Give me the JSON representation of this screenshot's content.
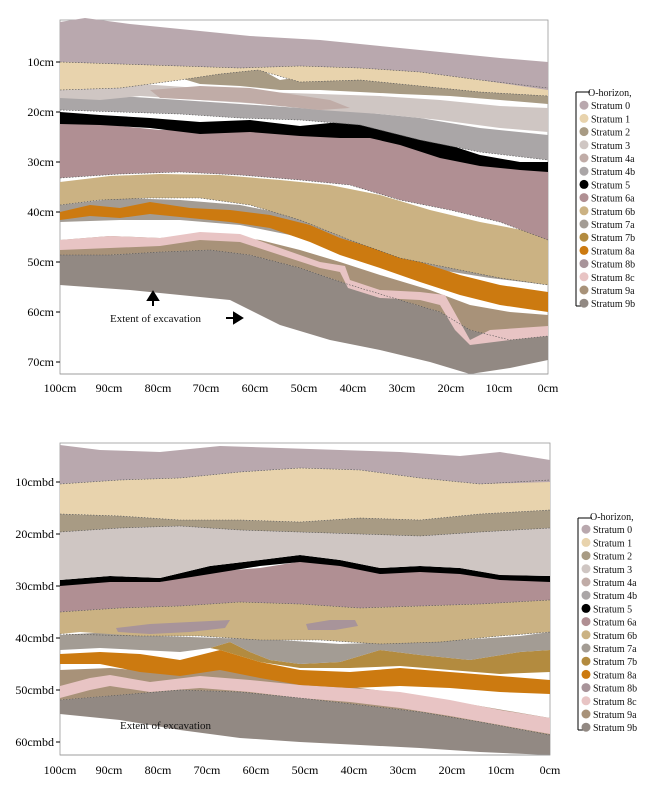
{
  "panels": [
    {
      "id": "top",
      "x_labels": [
        "100cm",
        "90cm",
        "80cm",
        "70cm",
        "60cm",
        "50cm",
        "40cm",
        "30cm",
        "20cm",
        "10cm",
        "0cm"
      ],
      "y_labels": [
        "10cm",
        "20cm",
        "30cm",
        "40cm",
        "50cm",
        "60cm",
        "70cm"
      ],
      "annotation": "Extent of excavation"
    },
    {
      "id": "bottom",
      "x_labels": [
        "100cm",
        "90cm",
        "80cm",
        "70cm",
        "60cm",
        "50cm",
        "40cm",
        "30cm",
        "20cm",
        "10cm",
        "0cm"
      ],
      "y_labels": [
        "10cmbd",
        "20cmbd",
        "30cmbd",
        "40cmbd",
        "50cmbd",
        "60cmbd"
      ],
      "annotation": "Extent of excavation"
    }
  ],
  "legend": [
    {
      "label": "O-horizon,",
      "color": ""
    },
    {
      "label": "Stratum 0",
      "color": "#b9a8ae"
    },
    {
      "label": "Stratum 1",
      "color": "#e8d3ad"
    },
    {
      "label": "Stratum 2",
      "color": "#a89b84"
    },
    {
      "label": "Stratum 3",
      "color": "#cfc6c3"
    },
    {
      "label": "Stratum 4a",
      "color": "#c0aca7"
    },
    {
      "label": "Stratum 4b",
      "color": "#aaa6a7"
    },
    {
      "label": "Stratum 5",
      "color": "#000000"
    },
    {
      "label": "Stratum 6a",
      "color": "#b08f93"
    },
    {
      "label": "Stratum 6b",
      "color": "#cbb283"
    },
    {
      "label": "Stratum 7a",
      "color": "#a39c94"
    },
    {
      "label": "Stratum 7b",
      "color": "#b38b3f"
    },
    {
      "label": "Stratum 8a",
      "color": "#cc7a10"
    },
    {
      "label": "Stratum 8b",
      "color": "#a8949a"
    },
    {
      "label": "Stratum 8c",
      "color": "#e8c4c4"
    },
    {
      "label": "Stratum 9a",
      "color": "#a89279"
    },
    {
      "label": "Stratum 9b",
      "color": "#928983"
    }
  ]
}
